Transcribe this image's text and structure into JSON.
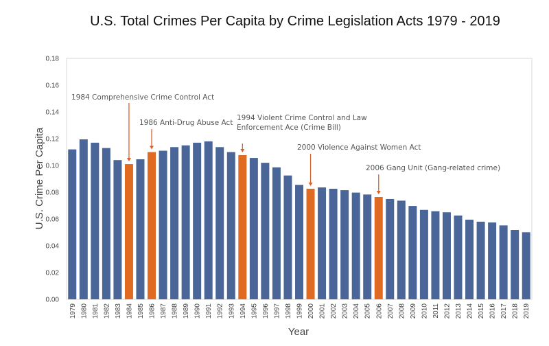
{
  "chart_data": {
    "type": "bar",
    "title": "U.S. Total Crimes Per Capita by Crime Legislation Acts 1979 - 2019",
    "xlabel": "Year",
    "ylabel": "U.S. Crime Per Capita",
    "ylim": [
      0,
      0.18
    ],
    "yticks": [
      "0.00",
      "0.02",
      "0.04",
      "0.06",
      "0.08",
      "0.10",
      "0.12",
      "0.14",
      "0.16",
      "0.18"
    ],
    "grid": false,
    "categories": [
      "1979",
      "1980",
      "1981",
      "1982",
      "1983",
      "1984",
      "1985",
      "1986",
      "1987",
      "1988",
      "1989",
      "1990",
      "1991",
      "1992",
      "1993",
      "1994",
      "1995",
      "1996",
      "1997",
      "1998",
      "1999",
      "2000",
      "2001",
      "2002",
      "2003",
      "2004",
      "2005",
      "2006",
      "2007",
      "2008",
      "2009",
      "2010",
      "2011",
      "2012",
      "2013",
      "2014",
      "2015",
      "2016",
      "2017",
      "2018",
      "2019"
    ],
    "values": [
      0.112,
      0.1195,
      0.117,
      0.113,
      0.104,
      0.101,
      0.1046,
      0.11,
      0.111,
      0.1137,
      0.115,
      0.117,
      0.118,
      0.1137,
      0.11,
      0.1077,
      0.1056,
      0.102,
      0.0986,
      0.0925,
      0.0855,
      0.0826,
      0.0836,
      0.0826,
      0.0815,
      0.0797,
      0.0783,
      0.0764,
      0.0749,
      0.0737,
      0.0697,
      0.0668,
      0.0658,
      0.065,
      0.0626,
      0.0595,
      0.058,
      0.0574,
      0.0552,
      0.0518,
      0.0501
    ],
    "highlighted": [
      "1984",
      "1986",
      "1994",
      "2000",
      "2006"
    ],
    "colors": {
      "bar": "#4a6698",
      "highlight": "#e06a22",
      "annotation_arrow": "#d9622b"
    },
    "annotations": [
      {
        "year": "1984",
        "lines": [
          "1984 Comprehensive Crime Control Act"
        ]
      },
      {
        "year": "1986",
        "lines": [
          "1986 Anti-Drug Abuse Act"
        ]
      },
      {
        "year": "1994",
        "lines": [
          "1994 Violent Crime Control and Law",
          "Enforcement Ace (Crime Bill)"
        ]
      },
      {
        "year": "2000",
        "lines": [
          "2000 Violence Against Women Act"
        ]
      },
      {
        "year": "2006",
        "lines": [
          "2006 Gang Unit (Gang-related crime)"
        ]
      }
    ]
  }
}
